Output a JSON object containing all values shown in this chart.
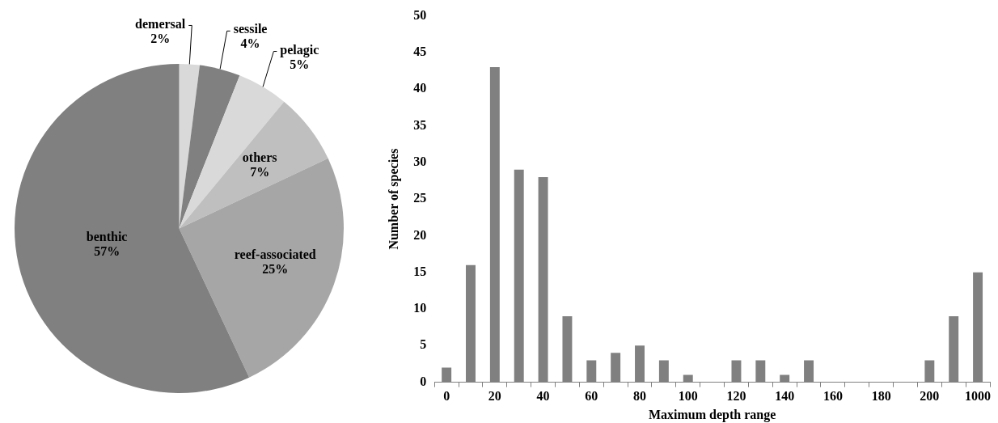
{
  "chart_data": [
    {
      "type": "pie",
      "categories": [
        "demersal",
        "sessile",
        "pelagic",
        "others",
        "reef-associated",
        "benthic"
      ],
      "values": [
        2,
        4,
        5,
        7,
        25,
        57
      ],
      "colors": [
        "#d9d9d9",
        "#808080",
        "#d9d9d9",
        "#bfbfbf",
        "#a6a6a6",
        "#808080"
      ],
      "value_labels": [
        "2%",
        "4%",
        "5%",
        "7%",
        "25%",
        "57%"
      ],
      "legend": false
    },
    {
      "type": "bar",
      "xlabel": "Maximum depth range",
      "ylabel": "Number of species",
      "categories": [
        "0",
        null,
        "20",
        null,
        "40",
        null,
        "60",
        null,
        "80",
        null,
        "100",
        null,
        "120",
        null,
        "140",
        null,
        "160",
        null,
        "180",
        null,
        "200",
        null,
        "1000"
      ],
      "values": [
        2,
        16,
        43,
        29,
        28,
        9,
        3,
        4,
        5,
        3,
        1,
        0,
        3,
        3,
        1,
        3,
        0,
        0,
        0,
        0,
        3,
        9,
        15
      ],
      "color": "#808080",
      "ylim": [
        0,
        50
      ],
      "yticks": [
        0,
        5,
        10,
        15,
        20,
        25,
        30,
        35,
        40,
        45,
        50
      ],
      "grid": false,
      "legend": false
    }
  ]
}
